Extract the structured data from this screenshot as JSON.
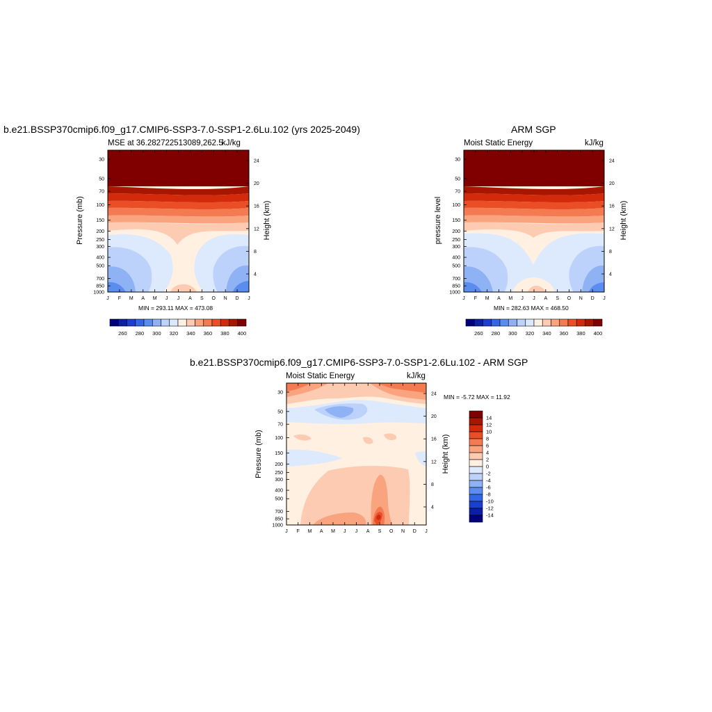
{
  "panels": [
    {
      "id": "model",
      "title": "b.e21.BSSP370cmip6.f09_g17.CMIP6-SSP3-7.0-SSP1-2.6Lu.102 (yrs 2025-2049)",
      "left_label": "MSE at 36.282722513089,262.5",
      "right_label": "kJ/kg",
      "ylabel": "Pressure (mb)",
      "y2label": "Height (km)",
      "stats": "MIN = 293.11 MAX = 473.08"
    },
    {
      "id": "obs",
      "title": "ARM SGP",
      "left_label": "Moist Static Energy",
      "right_label": "kJ/kg",
      "ylabel": "pressure level",
      "y2label": "Height (km)",
      "stats": "MIN = 282.63 MAX = 468.50"
    },
    {
      "id": "diff",
      "title": "b.e21.BSSP370cmip6.f09_g17.CMIP6-SSP3-7.0-SSP1-2.6Lu.102 - ARM SGP",
      "left_label": "Moist Static Energy",
      "right_label": "kJ/kg",
      "ylabel": "Pressure (mb)",
      "y2label": "Height (km)",
      "stats": "MIN =  -5.72 MAX =  11.92"
    }
  ],
  "chart_data": {
    "type": "heatmap",
    "x_ticks": [
      "J",
      "F",
      "M",
      "A",
      "M",
      "J",
      "J",
      "A",
      "S",
      "O",
      "N",
      "D",
      "J"
    ],
    "pressure_ticks": [
      "30",
      "50",
      "70",
      "100",
      "150",
      "200",
      "250",
      "300",
      "400",
      "500",
      "700",
      "850",
      "1000"
    ],
    "height_ticks": [
      "24",
      "20",
      "16",
      "12",
      "8",
      "4"
    ],
    "mse_colorbar": {
      "labels": [
        "260",
        "280",
        "300",
        "320",
        "340",
        "360",
        "380",
        "400"
      ],
      "colors": [
        "#00007f",
        "#0a1fa6",
        "#1a3fd1",
        "#3366e6",
        "#5b8cf0",
        "#8fb2f5",
        "#bcd2fa",
        "#dde9fc",
        "#fff0e2",
        "#fccbb2",
        "#f9a37f",
        "#f47a52",
        "#ea4e26",
        "#d22a0b",
        "#a81500",
        "#800000"
      ]
    },
    "diff_colorbar": {
      "labels": [
        "14",
        "12",
        "10",
        "8",
        "6",
        "4",
        "2",
        "0",
        "-2",
        "-4",
        "-6",
        "-8",
        "-10",
        "-12",
        "-14"
      ],
      "colors": [
        "#800000",
        "#a81500",
        "#d22a0b",
        "#ea4e26",
        "#f47a52",
        "#f9a37f",
        "#fccbb2",
        "#fff0e2",
        "#dde9fc",
        "#bcd2fa",
        "#8fb2f5",
        "#5b8cf0",
        "#3366e6",
        "#1a3fd1",
        "#0a1fa6",
        "#00007f"
      ]
    }
  }
}
